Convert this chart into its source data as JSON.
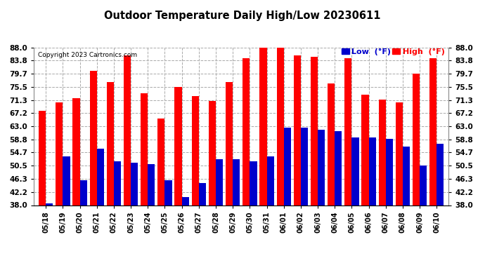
{
  "title": "Outdoor Temperature Daily High/Low 20230611",
  "copyright": "Copyright 2023 Cartronics.com",
  "dates": [
    "05/18",
    "05/19",
    "05/20",
    "05/21",
    "05/22",
    "05/23",
    "05/24",
    "05/25",
    "05/26",
    "05/27",
    "05/28",
    "05/29",
    "05/30",
    "05/31",
    "06/01",
    "06/02",
    "06/03",
    "06/04",
    "06/05",
    "06/06",
    "06/07",
    "06/08",
    "06/09",
    "06/10"
  ],
  "highs": [
    68.0,
    70.5,
    72.0,
    80.5,
    77.0,
    85.5,
    73.5,
    65.5,
    75.5,
    72.5,
    71.0,
    77.0,
    84.5,
    88.0,
    88.0,
    85.5,
    85.0,
    76.5,
    84.5,
    73.0,
    71.5,
    70.5,
    79.7,
    84.5
  ],
  "lows": [
    38.5,
    53.5,
    46.0,
    56.0,
    52.0,
    51.5,
    51.0,
    46.0,
    40.5,
    45.0,
    52.5,
    52.5,
    52.0,
    53.5,
    62.5,
    62.5,
    62.0,
    61.5,
    59.5,
    59.5,
    59.0,
    56.5,
    50.5,
    57.5
  ],
  "high_color": "#ff0000",
  "low_color": "#0000cc",
  "bg_color": "#ffffff",
  "grid_color": "#aaaaaa",
  "yticks": [
    38.0,
    42.2,
    46.3,
    50.5,
    54.7,
    58.8,
    63.0,
    67.2,
    71.3,
    75.5,
    79.7,
    83.8,
    88.0
  ],
  "ylim": [
    38.0,
    88.0
  ],
  "bar_width": 0.42
}
